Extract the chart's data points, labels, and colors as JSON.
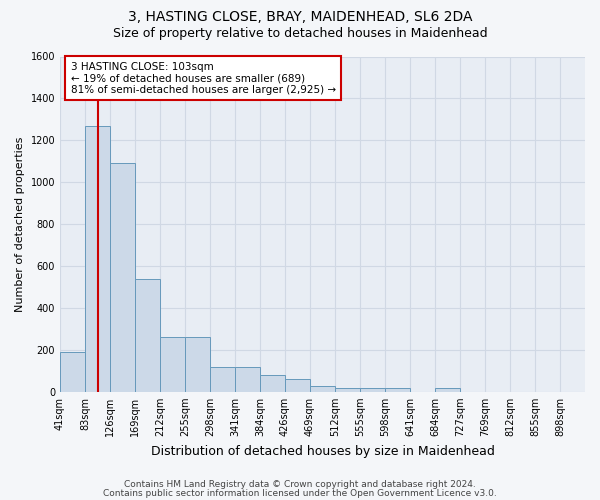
{
  "title1": "3, HASTING CLOSE, BRAY, MAIDENHEAD, SL6 2DA",
  "title2": "Size of property relative to detached houses in Maidenhead",
  "xlabel": "Distribution of detached houses by size in Maidenhead",
  "ylabel": "Number of detached properties",
  "bin_labels": [
    "41sqm",
    "83sqm",
    "126sqm",
    "169sqm",
    "212sqm",
    "255sqm",
    "298sqm",
    "341sqm",
    "384sqm",
    "426sqm",
    "469sqm",
    "512sqm",
    "555sqm",
    "598sqm",
    "641sqm",
    "684sqm",
    "727sqm",
    "769sqm",
    "812sqm",
    "855sqm",
    "898sqm"
  ],
  "bar_values": [
    190,
    1270,
    1090,
    540,
    260,
    260,
    120,
    120,
    80,
    60,
    30,
    20,
    20,
    20,
    0,
    20,
    0,
    0,
    0,
    0,
    0
  ],
  "bar_color": "#ccd9e8",
  "bar_edge_color": "#6699bb",
  "vline_x": 1.5,
  "vline_color": "#cc0000",
  "annotation_text": "3 HASTING CLOSE: 103sqm\n← 19% of detached houses are smaller (689)\n81% of semi-detached houses are larger (2,925) →",
  "annotation_box_color": "#cc0000",
  "ylim": [
    0,
    1600
  ],
  "yticks": [
    0,
    200,
    400,
    600,
    800,
    1000,
    1200,
    1400,
    1600
  ],
  "footer1": "Contains HM Land Registry data © Crown copyright and database right 2024.",
  "footer2": "Contains public sector information licensed under the Open Government Licence v3.0.",
  "bg_color": "#f4f6f9",
  "plot_bg_color": "#e8edf4",
  "grid_color": "#d0d8e4"
}
